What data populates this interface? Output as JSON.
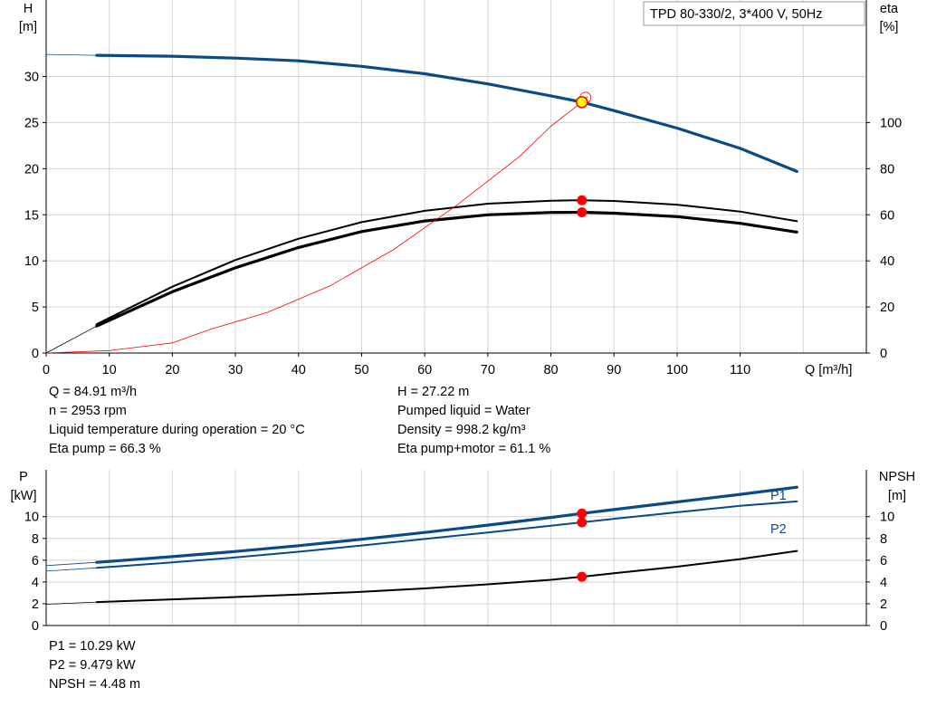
{
  "title": "TPD 80-330/2, 3*400 V, 50Hz",
  "upper_axes": {
    "left_label_line1": "H",
    "left_label_line2": "[m]",
    "right_label_line1": "eta",
    "right_label_line2": "[%]",
    "x_label": "Q [m³/h]"
  },
  "lower_axes": {
    "left_label_line1": "P",
    "left_label_line2": "[kW]",
    "right_label_line1": "NPSH",
    "right_label_line2": "[m]",
    "p1_label": "P1",
    "p2_label": "P2"
  },
  "duty_info": {
    "col1": [
      "Q = 84.91 m³/h",
      "n = 2953 rpm",
      "Liquid temperature during operation = 20 °C",
      "Eta pump = 66.3 %"
    ],
    "col2": [
      "H = 27.22 m",
      "Pumped liquid = Water",
      "Density = 998.2 kg/m³",
      "Eta pump+motor = 61.1 %"
    ]
  },
  "power_info": [
    "P1 = 10.29 kW",
    "P2 = 9.479 kW",
    "NPSH = 4.48 m"
  ],
  "colors": {
    "blue": "#0a4a86",
    "black": "#000000",
    "red": "#ff0000",
    "marker_yellow": "#ffff00",
    "grid": "#d4d4d4"
  },
  "chart_data": [
    {
      "type": "line",
      "panel": "upper",
      "x_ticks": [
        0,
        10,
        20,
        30,
        40,
        50,
        60,
        70,
        80,
        90,
        100,
        110
      ],
      "xlim": [
        0,
        130
      ],
      "left_axis": {
        "ticks": [
          0,
          5,
          10,
          15,
          20,
          25,
          30
        ],
        "ylim": [
          0,
          38.3
        ]
      },
      "right_axis": {
        "ticks": [
          0,
          20,
          40,
          60,
          80,
          100
        ],
        "ylim": [
          0,
          153.2
        ]
      },
      "grid": true,
      "duty_point": {
        "q": 84.91,
        "h": 27.22
      },
      "series": [
        {
          "key": "head_extension",
          "axis": "left",
          "style": "thin-blue",
          "x": [
            0,
            8
          ],
          "y": [
            32.4,
            32.3
          ]
        },
        {
          "key": "head",
          "axis": "left",
          "style": "blue",
          "x": [
            8,
            20,
            30,
            40,
            50,
            60,
            70,
            80,
            84.91,
            90,
            100,
            110,
            119
          ],
          "y": [
            32.3,
            32.2,
            32.0,
            31.7,
            31.1,
            30.3,
            29.2,
            27.9,
            27.22,
            26.3,
            24.4,
            22.2,
            19.7
          ]
        },
        {
          "key": "eta_pump_motor_ext",
          "axis": "right",
          "style": "thin-black",
          "x": [
            0,
            8
          ],
          "y": [
            0,
            11.7
          ]
        },
        {
          "key": "eta_pump_motor",
          "axis": "right",
          "style": "black-thick",
          "x": [
            8,
            20,
            30,
            40,
            50,
            60,
            70,
            80,
            84.91,
            90,
            100,
            110,
            119
          ],
          "y": [
            11.7,
            26.6,
            37.0,
            45.8,
            52.7,
            57.3,
            60.0,
            61.0,
            61.1,
            60.7,
            59.2,
            56.3,
            52.5
          ]
        },
        {
          "key": "eta_pump",
          "axis": "right",
          "style": "black",
          "x": [
            8,
            20,
            30,
            40,
            50,
            60,
            70,
            80,
            84.91,
            90,
            100,
            110,
            119
          ],
          "y": [
            12.5,
            28.8,
            40.4,
            49.6,
            56.8,
            61.7,
            64.8,
            66.1,
            66.3,
            66.0,
            64.4,
            61.4,
            57.2
          ]
        },
        {
          "key": "duty_line",
          "axis": "left",
          "style": "red-thin",
          "x": [
            0,
            10,
            20,
            26,
            35,
            45,
            55,
            65,
            75,
            80,
            84.91,
            85.8
          ],
          "y": [
            0,
            0.27,
            1.1,
            2.56,
            4.4,
            7.3,
            11.2,
            16.0,
            21.3,
            24.6,
            27.22,
            27.8
          ]
        }
      ],
      "markers": [
        {
          "axis": "left",
          "x": 84.91,
          "y": 27.22,
          "style": "duty-yellow"
        },
        {
          "axis": "right",
          "x": 84.91,
          "y": 66.3,
          "style": "red-dot"
        },
        {
          "axis": "right",
          "x": 84.91,
          "y": 61.1,
          "style": "red-dot"
        }
      ]
    },
    {
      "type": "line",
      "panel": "lower",
      "xlim": [
        0,
        130
      ],
      "left_axis": {
        "ticks": [
          0,
          2,
          4,
          6,
          8,
          10
        ],
        "ylim": [
          0,
          14.3
        ]
      },
      "right_axis": {
        "ticks": [
          0,
          2,
          4,
          6,
          8,
          10
        ],
        "ylim": [
          0,
          14.3
        ]
      },
      "grid": true,
      "series": [
        {
          "key": "p1_extension",
          "axis": "left",
          "style": "thin-blue",
          "x": [
            0,
            8
          ],
          "y": [
            5.5,
            5.8
          ]
        },
        {
          "key": "p1",
          "axis": "left",
          "style": "blue",
          "x": [
            8,
            20,
            30,
            40,
            50,
            60,
            70,
            80,
            84.91,
            90,
            100,
            110,
            119
          ],
          "y": [
            5.8,
            6.33,
            6.8,
            7.33,
            7.92,
            8.55,
            9.22,
            9.93,
            10.29,
            10.65,
            11.35,
            12.05,
            12.7
          ]
        },
        {
          "key": "p2_extension",
          "axis": "left",
          "style": "thin-blue",
          "x": [
            0,
            8
          ],
          "y": [
            5.0,
            5.3
          ]
        },
        {
          "key": "p2",
          "axis": "left",
          "style": "blue-thin",
          "x": [
            8,
            20,
            30,
            40,
            50,
            60,
            70,
            80,
            84.91,
            90,
            100,
            110,
            119
          ],
          "y": [
            5.3,
            5.8,
            6.25,
            6.78,
            7.35,
            7.95,
            8.55,
            9.17,
            9.479,
            9.8,
            10.4,
            11.0,
            11.4
          ]
        },
        {
          "key": "npsh_extension",
          "axis": "right",
          "style": "thin-black",
          "x": [
            0,
            8
          ],
          "y": [
            1.95,
            2.15
          ]
        },
        {
          "key": "npsh",
          "axis": "right",
          "style": "black",
          "x": [
            8,
            20,
            30,
            40,
            50,
            60,
            70,
            80,
            84.91,
            90,
            100,
            110,
            119
          ],
          "y": [
            2.15,
            2.4,
            2.62,
            2.84,
            3.09,
            3.41,
            3.78,
            4.2,
            4.48,
            4.8,
            5.4,
            6.1,
            6.85
          ]
        }
      ],
      "markers": [
        {
          "axis": "left",
          "x": 84.91,
          "y": 10.29,
          "style": "red-dot"
        },
        {
          "axis": "left",
          "x": 84.91,
          "y": 9.479,
          "style": "red-dot"
        },
        {
          "axis": "right",
          "x": 84.91,
          "y": 4.48,
          "style": "red-dot"
        }
      ]
    }
  ]
}
